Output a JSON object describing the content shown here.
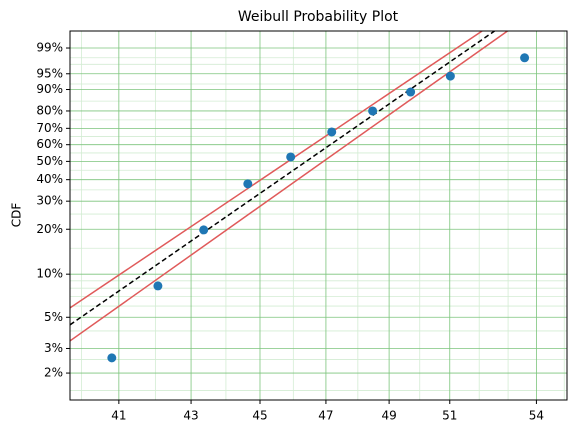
{
  "chart_data": {
    "type": "scatter",
    "title": "Weibull Probability Plot",
    "y_label": "CDF",
    "x_scale": "log",
    "y_scale": "weibull",
    "grid": true,
    "major_grid_color": "#7cc47c",
    "minor_grid_color": "#d3ecd3",
    "xlim": [
      39.7,
      55.1
    ],
    "ylim": [
      1.28,
      99.78
    ],
    "xticks": [
      41,
      43,
      45,
      47,
      49,
      51,
      54
    ],
    "xminor_ticks": [
      40,
      42,
      44,
      46,
      48,
      50,
      52,
      53,
      55
    ],
    "yticks": [
      {
        "value": 2,
        "label": "2%"
      },
      {
        "value": 3,
        "label": "3%"
      },
      {
        "value": 5,
        "label": "5%"
      },
      {
        "value": 10,
        "label": "10%"
      },
      {
        "value": 20,
        "label": "20%"
      },
      {
        "value": 30,
        "label": "30%"
      },
      {
        "value": 40,
        "label": "40%"
      },
      {
        "value": 50,
        "label": "50%"
      },
      {
        "value": 60,
        "label": "60%"
      },
      {
        "value": 70,
        "label": "70%"
      },
      {
        "value": 80,
        "label": "80%"
      },
      {
        "value": 90,
        "label": "90%"
      },
      {
        "value": 95,
        "label": "95%"
      },
      {
        "value": 99,
        "label": "99%"
      }
    ],
    "yminor_ticks": [
      1.5,
      2.5,
      4,
      6,
      7,
      8,
      9,
      15,
      25,
      35,
      45,
      55,
      65,
      75,
      85,
      92,
      97,
      98
    ],
    "series": [
      {
        "kind": "points",
        "color": "#1f77b4",
        "x": [
          40.81,
          42.07,
          43.36,
          44.64,
          45.92,
          47.18,
          48.47,
          49.7,
          51.02,
          53.58
        ],
        "values": [
          2.57,
          8.3,
          19.8,
          37.9,
          52.6,
          67.8,
          80.0,
          89.0,
          94.4,
          98.0
        ]
      },
      {
        "kind": "line",
        "style": "solid",
        "color": "#e05a5a",
        "x": [
          39.7,
          52.1
        ],
        "values": [
          5.82,
          99.78
        ]
      },
      {
        "kind": "line",
        "style": "solid",
        "color": "#e05a5a",
        "x": [
          39.7,
          52.98
        ],
        "values": [
          3.4,
          99.78
        ]
      },
      {
        "kind": "line",
        "style": "dashed",
        "color": "#000000",
        "x": [
          39.7,
          52.53
        ],
        "values": [
          4.42,
          99.78
        ]
      }
    ]
  }
}
